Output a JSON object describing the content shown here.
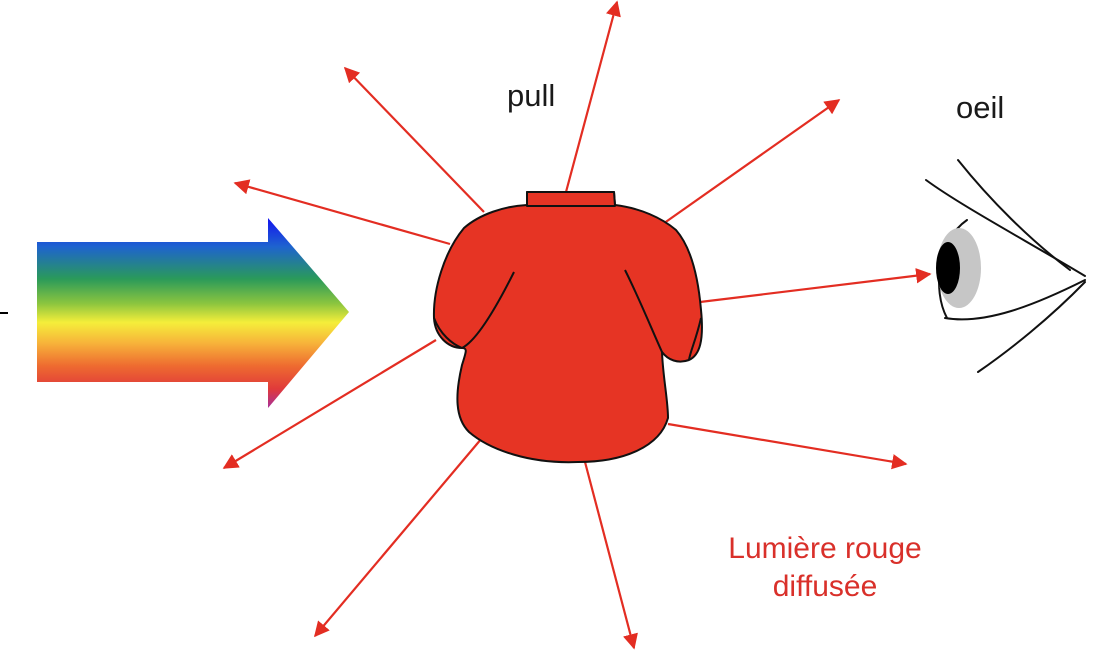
{
  "labels": {
    "pull": "pull",
    "oeil": "oeil",
    "diffuse_line1": "Lumière rouge",
    "diffuse_line2": "diffusée"
  },
  "colors": {
    "ray": "#e32d22",
    "sweater": "#e63424",
    "diffuse_text": "#d9302a",
    "spectrum": [
      "#1414f0",
      "#1e63cf",
      "#2a9a5a",
      "#8bc53f",
      "#f5ee3a",
      "#f7b23a",
      "#ee6a30",
      "#e03a3a",
      "#a8309a"
    ]
  },
  "icons": {
    "incoming": "rainbow-arrow-icon",
    "object": "sweater-icon",
    "observer": "eye-icon"
  }
}
